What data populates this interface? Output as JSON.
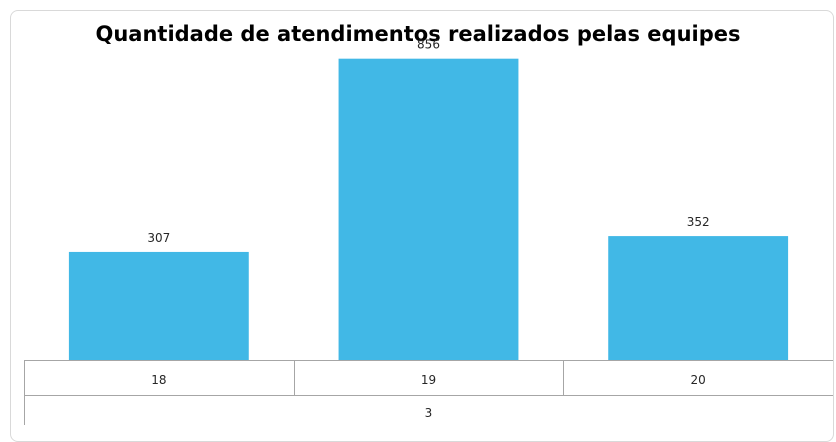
{
  "chart_data": {
    "type": "bar",
    "title": "Quantidade de atendimentos realizados pelas equipes",
    "categories": [
      "18",
      "19",
      "20"
    ],
    "group_label": "3",
    "values": [
      307,
      856,
      352
    ],
    "data_labels": [
      "307",
      "856",
      "352"
    ],
    "ylim": [
      0,
      1000
    ],
    "grid": false,
    "legend": "none",
    "bar_color": "#41b8e6",
    "axis_color": "#a6a6a6"
  }
}
